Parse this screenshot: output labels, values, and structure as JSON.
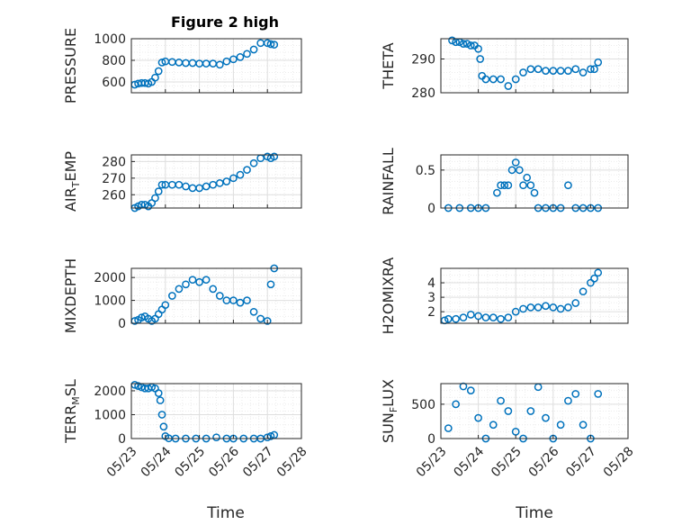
{
  "title": "Figure 2 high",
  "chart_data": [
    {
      "type": "scatter",
      "ylabel": "PRESSURE",
      "ylim": [
        500,
        1000
      ],
      "yticks": [
        600,
        800,
        1000
      ],
      "xlim": [
        "05/23",
        "05/28"
      ],
      "show_xticklabels": false,
      "series": [
        {
          "x_days": [
            0.1,
            0.2,
            0.3,
            0.4,
            0.5,
            0.6,
            0.7,
            0.8,
            0.9,
            1.0,
            1.2,
            1.4,
            1.6,
            1.8,
            2.0,
            2.2,
            2.4,
            2.6,
            2.8,
            3.0,
            3.2,
            3.4,
            3.6,
            3.8,
            4.0,
            4.1,
            4.2
          ],
          "values": [
            575,
            585,
            590,
            590,
            585,
            600,
            640,
            700,
            780,
            790,
            785,
            780,
            775,
            775,
            770,
            770,
            770,
            760,
            790,
            810,
            830,
            860,
            900,
            960,
            960,
            950,
            945
          ]
        }
      ]
    },
    {
      "type": "scatter",
      "ylabel": "THETA",
      "ylim": [
        280,
        296
      ],
      "yticks": [
        280,
        290
      ],
      "xlim": [
        "05/23",
        "05/28"
      ],
      "show_xticklabels": false,
      "series": [
        {
          "x_days": [
            0.3,
            0.4,
            0.5,
            0.6,
            0.7,
            0.8,
            0.9,
            1.0,
            1.05,
            1.1,
            1.2,
            1.4,
            1.6,
            1.8,
            2.0,
            2.2,
            2.4,
            2.6,
            2.8,
            3.0,
            3.2,
            3.4,
            3.6,
            3.8,
            4.0,
            4.1,
            4.2
          ],
          "values": [
            295.5,
            295,
            295,
            294.5,
            294.5,
            294,
            294,
            293,
            290,
            285,
            284,
            284,
            284,
            282,
            284,
            286,
            287,
            287,
            286.5,
            286.5,
            286.5,
            286.5,
            287,
            286,
            287,
            287,
            289
          ]
        }
      ]
    },
    {
      "type": "scatter",
      "ylabel": "AIR_TEMP",
      "ylim": [
        252,
        284
      ],
      "yticks": [
        260,
        270,
        280
      ],
      "xlim": [
        "05/23",
        "05/28"
      ],
      "show_xticklabels": false,
      "series": [
        {
          "x_days": [
            0.1,
            0.2,
            0.3,
            0.4,
            0.5,
            0.6,
            0.7,
            0.8,
            0.9,
            1.0,
            1.2,
            1.4,
            1.6,
            1.8,
            2.0,
            2.2,
            2.4,
            2.6,
            2.8,
            3.0,
            3.2,
            3.4,
            3.6,
            3.8,
            4.0,
            4.1,
            4.2
          ],
          "values": [
            252,
            253,
            254,
            254,
            253,
            255,
            258,
            262,
            266,
            266,
            266,
            266,
            265,
            264,
            264,
            265,
            266,
            267,
            268,
            270,
            272,
            275,
            279,
            282,
            283,
            282,
            283
          ]
        }
      ]
    },
    {
      "type": "scatter",
      "ylabel": "RAINFALL",
      "ylim": [
        0,
        0.7
      ],
      "yticks": [
        0,
        0.5
      ],
      "xlim": [
        "05/23",
        "05/28"
      ],
      "show_xticklabels": false,
      "series": [
        {
          "x_days": [
            0.2,
            0.5,
            0.8,
            1.0,
            1.2,
            1.5,
            1.6,
            1.7,
            1.8,
            1.9,
            2.0,
            2.1,
            2.2,
            2.3,
            2.4,
            2.5,
            2.6,
            2.8,
            3.0,
            3.2,
            3.4,
            3.6,
            3.8,
            4.0,
            4.2
          ],
          "values": [
            0,
            0,
            0,
            0,
            0,
            0.2,
            0.3,
            0.3,
            0.3,
            0.5,
            0.6,
            0.5,
            0.3,
            0.4,
            0.3,
            0.2,
            0,
            0,
            0,
            0,
            0.3,
            0,
            0,
            0,
            0
          ]
        }
      ]
    },
    {
      "type": "scatter",
      "ylabel": "MIXDEPTH",
      "ylim": [
        0,
        2400
      ],
      "yticks": [
        0,
        1000,
        2000
      ],
      "xlim": [
        "05/23",
        "05/28"
      ],
      "show_xticklabels": false,
      "series": [
        {
          "x_days": [
            0.1,
            0.2,
            0.3,
            0.4,
            0.5,
            0.6,
            0.7,
            0.8,
            0.9,
            1.0,
            1.2,
            1.4,
            1.6,
            1.8,
            2.0,
            2.2,
            2.4,
            2.6,
            2.8,
            3.0,
            3.2,
            3.4,
            3.6,
            3.8,
            4.0,
            4.1,
            4.2
          ],
          "values": [
            100,
            150,
            250,
            300,
            200,
            100,
            200,
            400,
            600,
            800,
            1200,
            1500,
            1700,
            1900,
            1800,
            1900,
            1500,
            1200,
            1000,
            1000,
            900,
            1000,
            500,
            200,
            100,
            1700,
            2400
          ]
        }
      ]
    },
    {
      "type": "scatter",
      "ylabel": "H2OMIXRA",
      "ylim": [
        1.2,
        5
      ],
      "yticks": [
        2,
        3,
        4
      ],
      "xlim": [
        "05/23",
        "05/28"
      ],
      "show_xticklabels": false,
      "series": [
        {
          "x_days": [
            0.1,
            0.2,
            0.4,
            0.6,
            0.8,
            1.0,
            1.2,
            1.4,
            1.6,
            1.8,
            2.0,
            2.2,
            2.4,
            2.6,
            2.8,
            3.0,
            3.2,
            3.4,
            3.6,
            3.8,
            4.0,
            4.1,
            4.2
          ],
          "values": [
            1.4,
            1.5,
            1.5,
            1.6,
            1.8,
            1.7,
            1.6,
            1.6,
            1.5,
            1.6,
            2.0,
            2.2,
            2.3,
            2.3,
            2.4,
            2.3,
            2.2,
            2.3,
            2.6,
            3.4,
            4.0,
            4.3,
            4.7
          ]
        }
      ]
    },
    {
      "type": "scatter",
      "ylabel": "TERR_MSL",
      "ylim": [
        0,
        2300
      ],
      "yticks": [
        0,
        1000,
        2000
      ],
      "xlim": [
        "05/23",
        "05/28"
      ],
      "show_xticklabels": true,
      "series": [
        {
          "x_days": [
            0.1,
            0.2,
            0.3,
            0.4,
            0.5,
            0.6,
            0.7,
            0.8,
            0.85,
            0.9,
            0.95,
            1.0,
            1.1,
            1.3,
            1.6,
            1.9,
            2.2,
            2.5,
            2.8,
            3.0,
            3.3,
            3.6,
            3.8,
            4.0,
            4.1,
            4.2
          ],
          "values": [
            2250,
            2200,
            2150,
            2100,
            2100,
            2150,
            2100,
            1900,
            1600,
            1000,
            500,
            100,
            10,
            0,
            0,
            0,
            0,
            50,
            0,
            0,
            0,
            0,
            0,
            50,
            100,
            150
          ]
        }
      ]
    },
    {
      "type": "scatter",
      "ylabel": "SUN_FLUX",
      "ylim": [
        0,
        800
      ],
      "yticks": [
        0,
        500
      ],
      "xlim": [
        "05/23",
        "05/28"
      ],
      "show_xticklabels": true,
      "series": [
        {
          "x_days": [
            0.2,
            0.4,
            0.6,
            0.8,
            1.0,
            1.2,
            1.4,
            1.6,
            1.8,
            2.0,
            2.2,
            2.4,
            2.6,
            2.8,
            3.0,
            3.2,
            3.4,
            3.6,
            3.8,
            4.0,
            4.2
          ],
          "values": [
            150,
            500,
            760,
            700,
            300,
            0,
            200,
            550,
            400,
            100,
            0,
            400,
            750,
            300,
            0,
            200,
            550,
            650,
            200,
            0,
            650
          ]
        }
      ]
    }
  ],
  "x_tick_labels": [
    "05/23",
    "05/24",
    "05/25",
    "05/26",
    "05/27",
    "05/28"
  ],
  "xlabel": "Time",
  "colors": {
    "marker": "#0072BD",
    "grid": "#dfdfdf",
    "axis": "#262626"
  }
}
